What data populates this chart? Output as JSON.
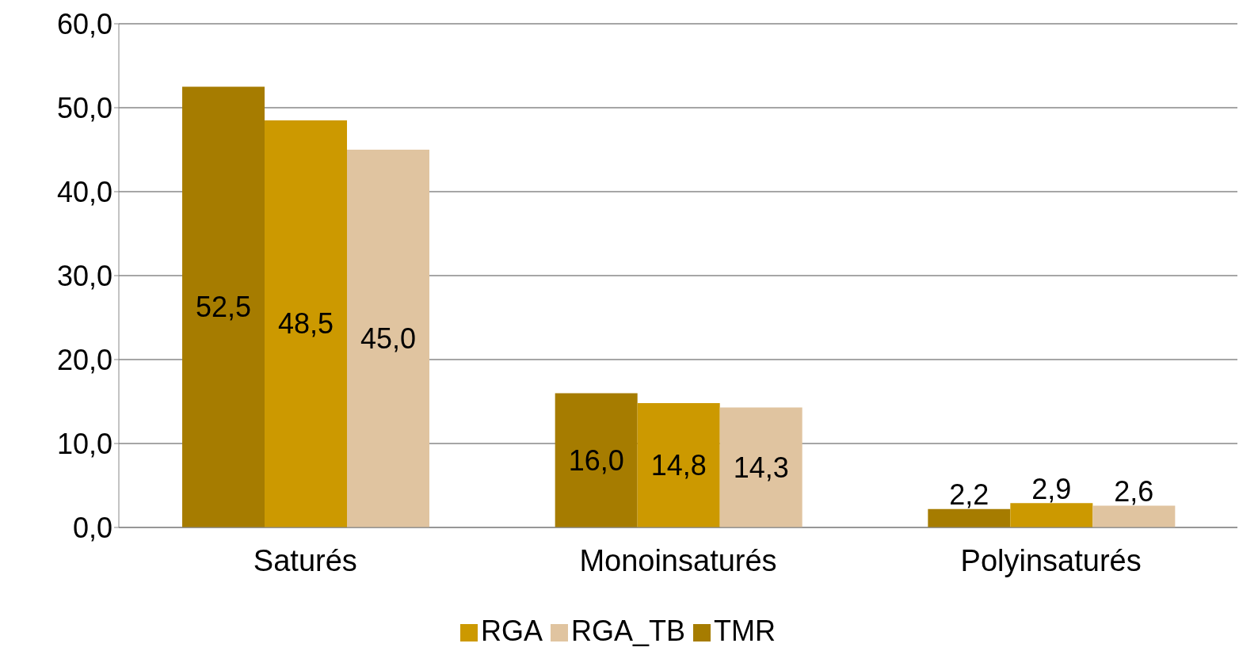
{
  "chart_data": {
    "type": "bar",
    "categories": [
      "Saturés",
      "Monoinsaturés",
      "Polyinsaturés"
    ],
    "series": [
      {
        "name": "TMR",
        "color": "#a67c00",
        "values": [
          52.5,
          16.0,
          2.2
        ],
        "value_labels": [
          "52,5",
          "16,0",
          "2,2"
        ]
      },
      {
        "name": "RGA",
        "color": "#cc9900",
        "values": [
          48.5,
          14.8,
          2.9
        ],
        "value_labels": [
          "48,5",
          "14,8",
          "2,9"
        ]
      },
      {
        "name": "RGA_TB",
        "color": "#e0c4a0",
        "values": [
          45.0,
          14.3,
          2.6
        ],
        "value_labels": [
          "45,0",
          "14,3",
          "2,6"
        ]
      }
    ],
    "ylim": [
      0,
      60
    ],
    "yticks": [
      {
        "value": 0,
        "label": "0,0"
      },
      {
        "value": 10,
        "label": "10,0"
      },
      {
        "value": 20,
        "label": "20,0"
      },
      {
        "value": 30,
        "label": "30,0"
      },
      {
        "value": 40,
        "label": "40,0"
      },
      {
        "value": 50,
        "label": "50,0"
      },
      {
        "value": 60,
        "label": "60,0"
      }
    ],
    "grid": "y",
    "legend": "bottom"
  }
}
